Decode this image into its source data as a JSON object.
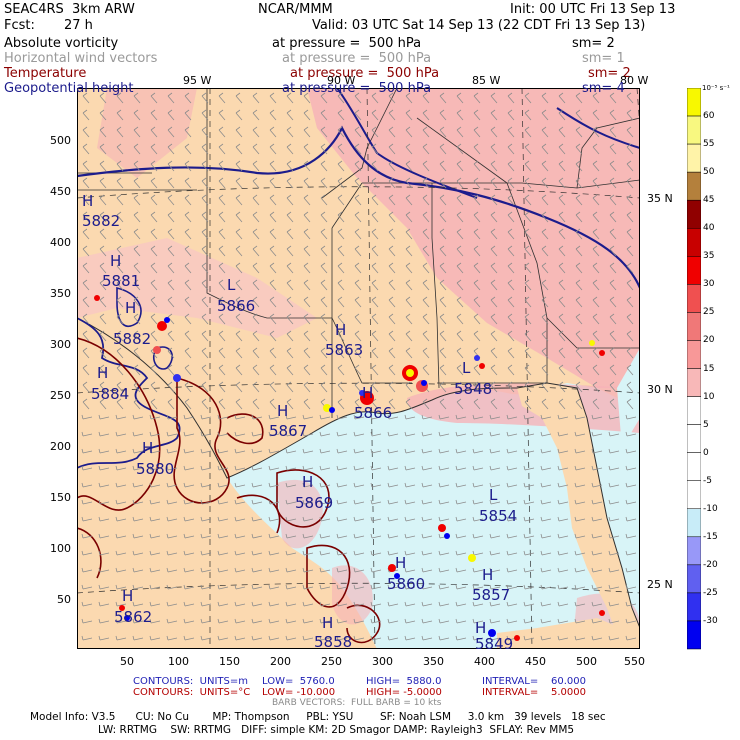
{
  "header": {
    "model_line": "SEAC4RS  3km ARW",
    "org": "NCAR/MMM",
    "init": "Init: 00 UTC Fri 13 Sep 13",
    "fcst_label": "Fcst:",
    "fcst_value": "27 h",
    "valid": "Valid: 03 UTC Sat 14 Sep 13 (22 CDT Fri 13 Sep 13)"
  },
  "fields": [
    {
      "name": "Absolute vorticity",
      "level": "at pressure =  500 hPa",
      "sm": "sm= 2",
      "color": "#000000"
    },
    {
      "name": "Horizontal wind vectors",
      "level": "at pressure =  500 hPa",
      "sm": "sm= 1",
      "color": "#9a9a9a"
    },
    {
      "name": "Temperature",
      "level": "at pressure =  500 hPa",
      "sm": "sm= 2",
      "color": "#8b0000"
    },
    {
      "name": "Geopotential height",
      "level": "at pressure =  500 hPa",
      "sm": "sm= 4",
      "color": "#1c1c8c"
    }
  ],
  "map": {
    "x_ticks": [
      "50",
      "100",
      "150",
      "200",
      "250",
      "300",
      "350",
      "400",
      "450",
      "500",
      "550"
    ],
    "y_ticks": [
      "500",
      "450",
      "400",
      "350",
      "300",
      "250",
      "200",
      "150",
      "100",
      "50"
    ],
    "lon_labels": [
      "95 W",
      "90 W",
      "85 W",
      "80 W"
    ],
    "lat_labels": [
      "35 N",
      "30 N",
      "25 N"
    ],
    "highs_lows": [
      {
        "type": "H",
        "value": "5882"
      },
      {
        "type": "H",
        "value": "5881"
      },
      {
        "type": "H",
        "value": "5882"
      },
      {
        "type": "H",
        "value": "5884"
      },
      {
        "type": "L",
        "value": "5866"
      },
      {
        "type": "H",
        "value": "5863"
      },
      {
        "type": "H",
        "value": "5867"
      },
      {
        "type": "H",
        "value": "5866"
      },
      {
        "type": "L",
        "value": "5848"
      },
      {
        "type": "H",
        "value": "5880"
      },
      {
        "type": "H",
        "value": "5869"
      },
      {
        "type": "L",
        "value": "5854"
      },
      {
        "type": "H",
        "value": "5860"
      },
      {
        "type": "H",
        "value": "5857"
      },
      {
        "type": "H",
        "value": "5862"
      },
      {
        "type": "H",
        "value": "5858"
      },
      {
        "type": "H",
        "value": "5849"
      }
    ],
    "colors": {
      "land": "#fbd9b0",
      "pink": "#f6b3b8",
      "light_pink": "#fbc9c9",
      "water": "#d8f4f7",
      "height": "#1c1c8c",
      "temp": "#7a0000",
      "barb": "#8c8c8c",
      "state": "#303030"
    }
  },
  "colorbar": {
    "unit": "10⁻⁵ s⁻¹",
    "labels": [
      "60",
      "55",
      "50",
      "45",
      "40",
      "35",
      "30",
      "25",
      "20",
      "15",
      "10",
      "5",
      "0",
      "-5",
      "-10",
      "-15",
      "-20",
      "-25",
      "-30"
    ],
    "colors": [
      "#f8f800",
      "#f8f880",
      "#fff3a8",
      "#b4803c",
      "#900000",
      "#c80000",
      "#f00000",
      "#f05050",
      "#f07878",
      "#f89898",
      "#f8b8b8",
      "#ffffff",
      "#ffffff",
      "#ffffff",
      "#ffffff",
      "#c8ecf8",
      "#9898f8",
      "#6060f0",
      "#3030f0",
      "#0000f0"
    ]
  },
  "footer": {
    "line1_a": "CONTOURS:  UNITS=m",
    "line1_b": "LOW=  5760.0",
    "line1_c": "HIGH=  5880.0",
    "line1_d": "INTERVAL=    60.000",
    "line2_a": "CONTOURS:  UNITS=°C",
    "line2_b": "LOW= -10.000",
    "line2_c": "HIGH= -5.0000",
    "line2_d": "INTERVAL=    5.0000",
    "line3": "BARB VECTORS:  FULL BARB = 10 kts",
    "model1": "Model Info: V3.5      CU: No Cu       MP: Thompson     PBL: YSU        SF: Noah LSM     3.0 km   39 levels   18 sec",
    "model2": "LW: RRTMG    SW: RRTMG   DIFF: simple KM: 2D Smagor DAMP: Rayleigh3  SFLAY: Rev MM5"
  }
}
